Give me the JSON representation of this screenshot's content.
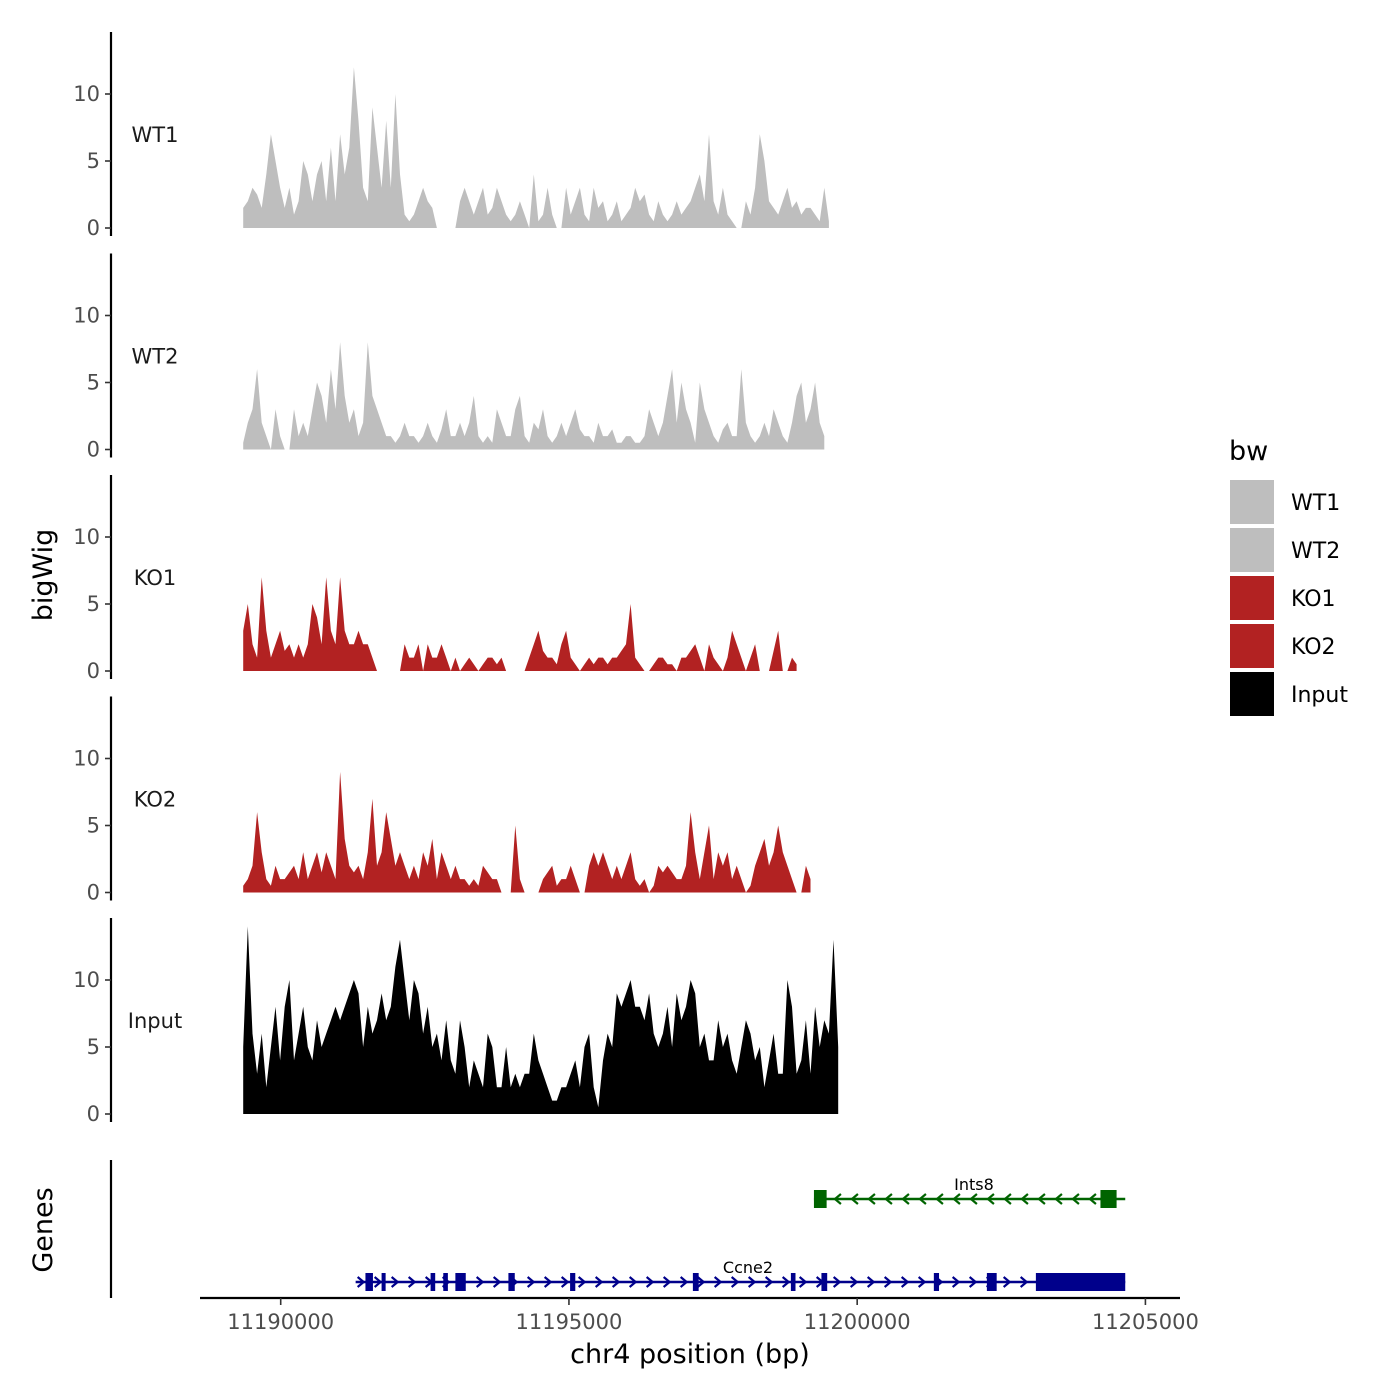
{
  "chart_data": {
    "type": "area",
    "chromosome": "chr4",
    "xlabel": "chr4 position (bp)",
    "ylabel": "bigWig",
    "genes_label": "Genes",
    "xlim": [
      11188600,
      11205600
    ],
    "x_ticks": [
      11190000,
      11195000,
      11200000,
      11205000
    ],
    "x_tick_labels": [
      "11190000",
      "11195000",
      "11200000",
      "11205000"
    ],
    "ylim": [
      0,
      14.5
    ],
    "y_ticks": [
      0,
      5,
      10
    ],
    "y_tick_labels": [
      "0",
      "5",
      "10"
    ],
    "legend": {
      "title": "bw",
      "entries": [
        {
          "label": "WT1",
          "color": "#bebebe"
        },
        {
          "label": "WT2",
          "color": "#bebebe"
        },
        {
          "label": "KO1",
          "color": "#b22222"
        },
        {
          "label": "KO2",
          "color": "#b22222"
        },
        {
          "label": "Input",
          "color": "#000000"
        }
      ]
    },
    "tracks": [
      {
        "name": "WT1",
        "color": "#bebebe",
        "x_start": 11189350,
        "x_step": 80,
        "values": [
          1.5,
          2,
          3,
          2.5,
          1.5,
          4,
          7,
          5,
          3,
          1.5,
          3,
          1,
          2,
          5,
          4,
          2,
          4,
          5,
          2,
          6,
          2,
          7,
          4,
          6,
          12,
          8,
          3,
          2,
          9,
          6,
          3,
          8,
          3,
          10,
          4,
          1,
          0.5,
          1,
          2,
          3,
          2,
          1.5,
          0,
          0,
          0,
          0,
          0,
          2,
          3,
          2,
          1,
          2,
          3,
          1,
          1.5,
          3,
          2,
          1,
          0.5,
          1,
          2,
          1,
          0,
          4,
          0.5,
          1,
          3,
          1,
          0,
          0,
          3,
          1,
          2,
          3,
          1,
          0.5,
          3,
          1.5,
          2,
          0.5,
          1,
          2,
          0.5,
          1,
          1.5,
          3,
          2,
          2.5,
          1,
          0.5,
          2,
          1,
          0.5,
          1,
          2,
          1,
          1.5,
          2,
          3,
          4,
          2,
          7,
          2,
          1,
          3,
          1,
          0.5,
          0,
          0,
          2,
          1,
          3,
          7,
          5,
          2,
          1.5,
          1,
          2,
          3,
          1.5,
          2,
          1,
          1.5,
          1.5,
          1,
          0.5,
          3,
          0.5
        ]
      },
      {
        "name": "WT2",
        "color": "#bebebe",
        "x_start": 11189350,
        "x_step": 80,
        "values": [
          0.5,
          2,
          3,
          6,
          2,
          1,
          0,
          3,
          1,
          0,
          0,
          3,
          1,
          2,
          1,
          3,
          5,
          4,
          2,
          6,
          3,
          8,
          4,
          2,
          3,
          1,
          2,
          8,
          4,
          3,
          2,
          1,
          1,
          0.5,
          1,
          2,
          1,
          1,
          0.5,
          1,
          2,
          1,
          0.5,
          1.5,
          3,
          1,
          1,
          2,
          1,
          2,
          4,
          1,
          0.5,
          1,
          0.5,
          3,
          2,
          1,
          1,
          3,
          4,
          1,
          0.5,
          2,
          1.5,
          3,
          1,
          0.5,
          1,
          2,
          1,
          2,
          3,
          1.5,
          1,
          1,
          0.5,
          2,
          1,
          1,
          1.5,
          0.5,
          0.5,
          1,
          1,
          0.5,
          0.5,
          1,
          3,
          2,
          1,
          2,
          4,
          6,
          2,
          5,
          3,
          2,
          0.5,
          5,
          3,
          2,
          1,
          0.5,
          1.5,
          2,
          1,
          1,
          6,
          2,
          1,
          0.5,
          1,
          2,
          1,
          3,
          2,
          1,
          0.5,
          2,
          4,
          5,
          2,
          3,
          5,
          2,
          1
        ]
      },
      {
        "name": "KO1",
        "color": "#b22222",
        "x_start": 11189350,
        "x_step": 80,
        "values": [
          3,
          5,
          2,
          1,
          7,
          3,
          1,
          2,
          3,
          1.5,
          2,
          1,
          2,
          1,
          2,
          5,
          4,
          2,
          7,
          3,
          2,
          7,
          3,
          2,
          2,
          3,
          2,
          2,
          1,
          0,
          0,
          0,
          0,
          0,
          0,
          2,
          1,
          1,
          2,
          0,
          2,
          1,
          1,
          2,
          1,
          0,
          1,
          0,
          0.5,
          1,
          0.5,
          0,
          0.5,
          1,
          1,
          0.5,
          1,
          0,
          0,
          0,
          0,
          0,
          1,
          2,
          3,
          1.5,
          1,
          1,
          0.5,
          2,
          3,
          1,
          0.5,
          0,
          0.5,
          1,
          0.5,
          1,
          1,
          0.5,
          1,
          1,
          1.5,
          2,
          5,
          1,
          0.5,
          0,
          0,
          0.5,
          1,
          1,
          0.5,
          0.5,
          0,
          1,
          1,
          1.5,
          2,
          1,
          0,
          2,
          1,
          0.5,
          0,
          1,
          3,
          2,
          1,
          0,
          1,
          2,
          0,
          0,
          0,
          1.5,
          3,
          0,
          0,
          1,
          0.5
        ]
      },
      {
        "name": "KO2",
        "color": "#b22222",
        "x_start": 11189350,
        "x_step": 80,
        "values": [
          0.5,
          1,
          2,
          6,
          3,
          1,
          0.5,
          2,
          1,
          1,
          1.5,
          2,
          1,
          3,
          1,
          2,
          3,
          1.5,
          3,
          2,
          1,
          9,
          4,
          2,
          1.5,
          2,
          1,
          3,
          7,
          2,
          3,
          6,
          4,
          2,
          3,
          2,
          1,
          2,
          1,
          3,
          2,
          4,
          1,
          3,
          2,
          1,
          2,
          1,
          1,
          0.5,
          1,
          0.5,
          2,
          1.5,
          1,
          1,
          0,
          0,
          0,
          5,
          1,
          0,
          0,
          0,
          0,
          1,
          1.5,
          2,
          0.5,
          1,
          1,
          2,
          1,
          0,
          0,
          2,
          3,
          2,
          3,
          2,
          1,
          2,
          1,
          2,
          3,
          1,
          0.5,
          1,
          0,
          0.5,
          2,
          1.5,
          2,
          1.5,
          1,
          1,
          2,
          6,
          3,
          1,
          3,
          5,
          1,
          3,
          2,
          3,
          1,
          2,
          1,
          0,
          0.5,
          2,
          3,
          4,
          2,
          3,
          5,
          3,
          2,
          1,
          0,
          0,
          2,
          1
        ]
      },
      {
        "name": "Input",
        "color": "#000000",
        "x_start": 11189350,
        "x_step": 80,
        "values": [
          5,
          14,
          6,
          3,
          6,
          2,
          5,
          8,
          4,
          8,
          10,
          4,
          6,
          8,
          5,
          4,
          7,
          5,
          6,
          7,
          8,
          7,
          8,
          9,
          10,
          9,
          5,
          8,
          6,
          7,
          9,
          7,
          8,
          11,
          13,
          10,
          7,
          10,
          9,
          6,
          8,
          5,
          6,
          4,
          7,
          4,
          3,
          7,
          5,
          2,
          4,
          3,
          2,
          6,
          5,
          2,
          2,
          5,
          2,
          3,
          2,
          3,
          3,
          6,
          4,
          3,
          2,
          1,
          1,
          2,
          2,
          3,
          4,
          2,
          5,
          6,
          2,
          0.5,
          4,
          6,
          5,
          9,
          8,
          9,
          10,
          8,
          8,
          7,
          9,
          6,
          5,
          6,
          8,
          5,
          9,
          7,
          8,
          10,
          9,
          5,
          6,
          4,
          4,
          7,
          5,
          6,
          4,
          3,
          5,
          7,
          6,
          4,
          5,
          2,
          4,
          6,
          3,
          3,
          10,
          8,
          3,
          4,
          7,
          3,
          8,
          5,
          7,
          6,
          13,
          5
        ]
      }
    ],
    "genes": [
      {
        "name": "Ints8",
        "color": "#006400",
        "strand": "-",
        "start": 11199250,
        "end": 11204650,
        "exons": [
          [
            11199250,
            11199470
          ],
          [
            11204220,
            11204500
          ]
        ]
      },
      {
        "name": "Ccne2",
        "color": "#00008b",
        "strand": "+",
        "start": 11191300,
        "end": 11204650,
        "exons": [
          [
            11191470,
            11191600
          ],
          [
            11191750,
            11191820
          ],
          [
            11192600,
            11192680
          ],
          [
            11192820,
            11192900
          ],
          [
            11193030,
            11193210
          ],
          [
            11193950,
            11194060
          ],
          [
            11195020,
            11195110
          ],
          [
            11197150,
            11197250
          ],
          [
            11198850,
            11198930
          ],
          [
            11199380,
            11199480
          ],
          [
            11201330,
            11201420
          ],
          [
            11202250,
            11202420
          ],
          [
            11203100,
            11204650
          ]
        ]
      }
    ]
  }
}
